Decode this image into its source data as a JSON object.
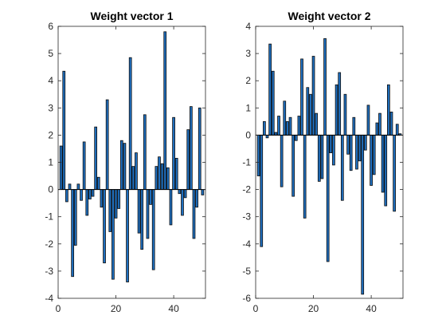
{
  "chart_data": [
    {
      "type": "bar",
      "title": "Weight vector 1",
      "xlabel": "",
      "ylabel": "",
      "xlim": [
        0,
        51
      ],
      "ylim": [
        -4,
        6
      ],
      "xticks": [
        0,
        20,
        40
      ],
      "yticks": [
        -4,
        -3,
        -2,
        -1,
        0,
        1,
        2,
        3,
        4,
        5,
        6
      ],
      "grid": false,
      "x": [
        1,
        2,
        3,
        4,
        5,
        6,
        7,
        8,
        9,
        10,
        11,
        12,
        13,
        14,
        15,
        16,
        17,
        18,
        19,
        20,
        21,
        22,
        23,
        24,
        25,
        26,
        27,
        28,
        29,
        30,
        31,
        32,
        33,
        34,
        35,
        36,
        37,
        38,
        39,
        40,
        41,
        42,
        43,
        44,
        45,
        46,
        47,
        48,
        49,
        50
      ],
      "values": [
        1.6,
        4.35,
        -0.45,
        0.2,
        -3.2,
        -2.05,
        0.2,
        -0.4,
        1.75,
        -0.95,
        -0.35,
        -0.25,
        2.3,
        0.45,
        -0.65,
        -2.7,
        3.3,
        -1.55,
        -3.3,
        -1.05,
        -0.7,
        1.8,
        1.7,
        -3.4,
        4.85,
        0.85,
        1.35,
        -1.6,
        -2.2,
        2.75,
        -1.8,
        -0.55,
        -2.95,
        0.85,
        1.2,
        0.95,
        5.8,
        0.8,
        -1.3,
        2.65,
        1.15,
        -0.15,
        -0.95,
        -0.3,
        2.2,
        3.05,
        -1.8,
        -0.65,
        3.0,
        -0.2
      ]
    },
    {
      "type": "bar",
      "title": "Weight vector 2",
      "xlabel": "",
      "ylabel": "",
      "xlim": [
        0,
        51
      ],
      "ylim": [
        -6,
        4
      ],
      "xticks": [
        0,
        20,
        40
      ],
      "yticks": [
        -6,
        -5,
        -4,
        -3,
        -2,
        -1,
        0,
        1,
        2,
        3,
        4
      ],
      "grid": false,
      "x": [
        1,
        2,
        3,
        4,
        5,
        6,
        7,
        8,
        9,
        10,
        11,
        12,
        13,
        14,
        15,
        16,
        17,
        18,
        19,
        20,
        21,
        22,
        23,
        24,
        25,
        26,
        27,
        28,
        29,
        30,
        31,
        32,
        33,
        34,
        35,
        36,
        37,
        38,
        39,
        40,
        41,
        42,
        43,
        44,
        45,
        46,
        47,
        48,
        49,
        50
      ],
      "values": [
        -1.5,
        -4.1,
        0.5,
        -0.1,
        3.35,
        2.35,
        0.1,
        0.7,
        -1.9,
        1.25,
        0.5,
        0.65,
        -2.25,
        -0.2,
        0.7,
        2.8,
        -3.05,
        1.75,
        1.5,
        2.9,
        0.8,
        -1.7,
        -1.6,
        3.55,
        -4.65,
        -0.65,
        -1.1,
        1.85,
        2.3,
        -2.4,
        1.5,
        -0.7,
        -1.3,
        0.65,
        -1.25,
        -0.95,
        -5.85,
        -0.55,
        1.1,
        -1.85,
        -1.45,
        0.45,
        0.8,
        -2.1,
        -2.6,
        1.85,
        0.85,
        -2.8,
        0.4,
        0.05
      ]
    }
  ],
  "style": {
    "bar_fill": "#1f6fbf",
    "bar_edge": "#0d0d0d",
    "axis_color": "#262626",
    "background": "#ffffff"
  }
}
